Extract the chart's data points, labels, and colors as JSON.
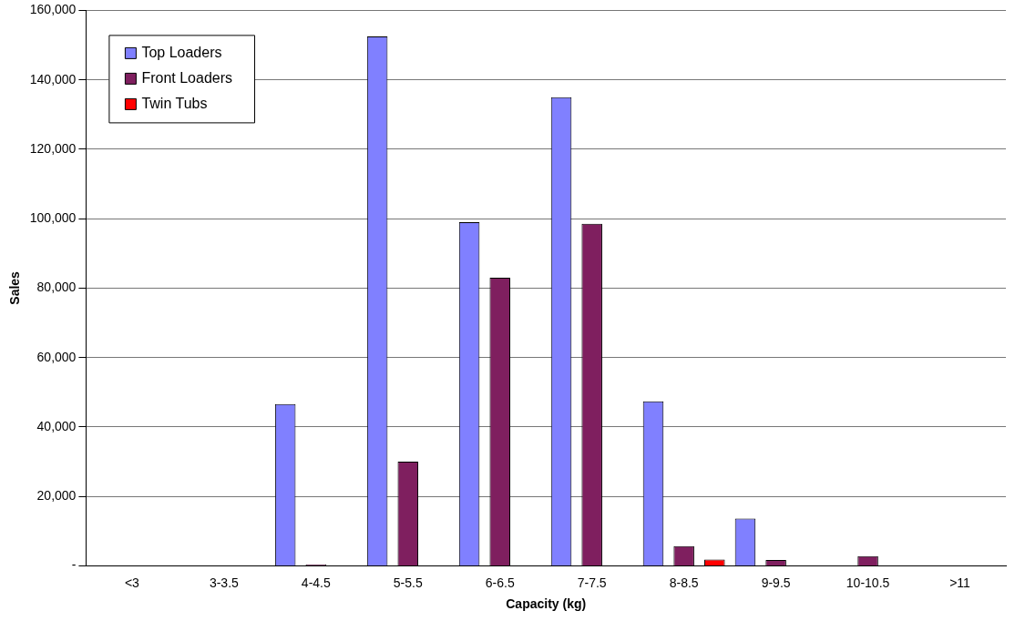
{
  "chart_data": {
    "type": "bar",
    "xlabel": "Capacity (kg)",
    "ylabel": "Sales",
    "categories": [
      "<3",
      "3-3.5",
      "4-4.5",
      "5-5.5",
      "6-6.5",
      "7-7.5",
      "8-8.5",
      "9-9.5",
      "10-10.5",
      ">11"
    ],
    "series": [
      {
        "name": "Top Loaders",
        "color": "#8080ff",
        "values": [
          0,
          0,
          46600,
          152500,
          99000,
          135000,
          47400,
          13600,
          0,
          0
        ]
      },
      {
        "name": "Front Loaders",
        "color": "#7f1f5f",
        "values": [
          0,
          0,
          400,
          30000,
          83000,
          98500,
          5700,
          1700,
          2800,
          0
        ]
      },
      {
        "name": "Twin Tubs",
        "color": "#ff0000",
        "values": [
          0,
          0,
          0,
          0,
          0,
          0,
          1800,
          0,
          0,
          0
        ]
      }
    ],
    "ylim": [
      0,
      160000
    ],
    "yticks": [
      {
        "value": 0,
        "label": "-"
      },
      {
        "value": 20000,
        "label": "20,000"
      },
      {
        "value": 40000,
        "label": "40,000"
      },
      {
        "value": 60000,
        "label": "60,000"
      },
      {
        "value": 80000,
        "label": "80,000"
      },
      {
        "value": 100000,
        "label": "100,000"
      },
      {
        "value": 120000,
        "label": "120,000"
      },
      {
        "value": 140000,
        "label": "140,000"
      },
      {
        "value": 160000,
        "label": "160,000"
      }
    ],
    "grid": "y",
    "legend": "top left"
  }
}
